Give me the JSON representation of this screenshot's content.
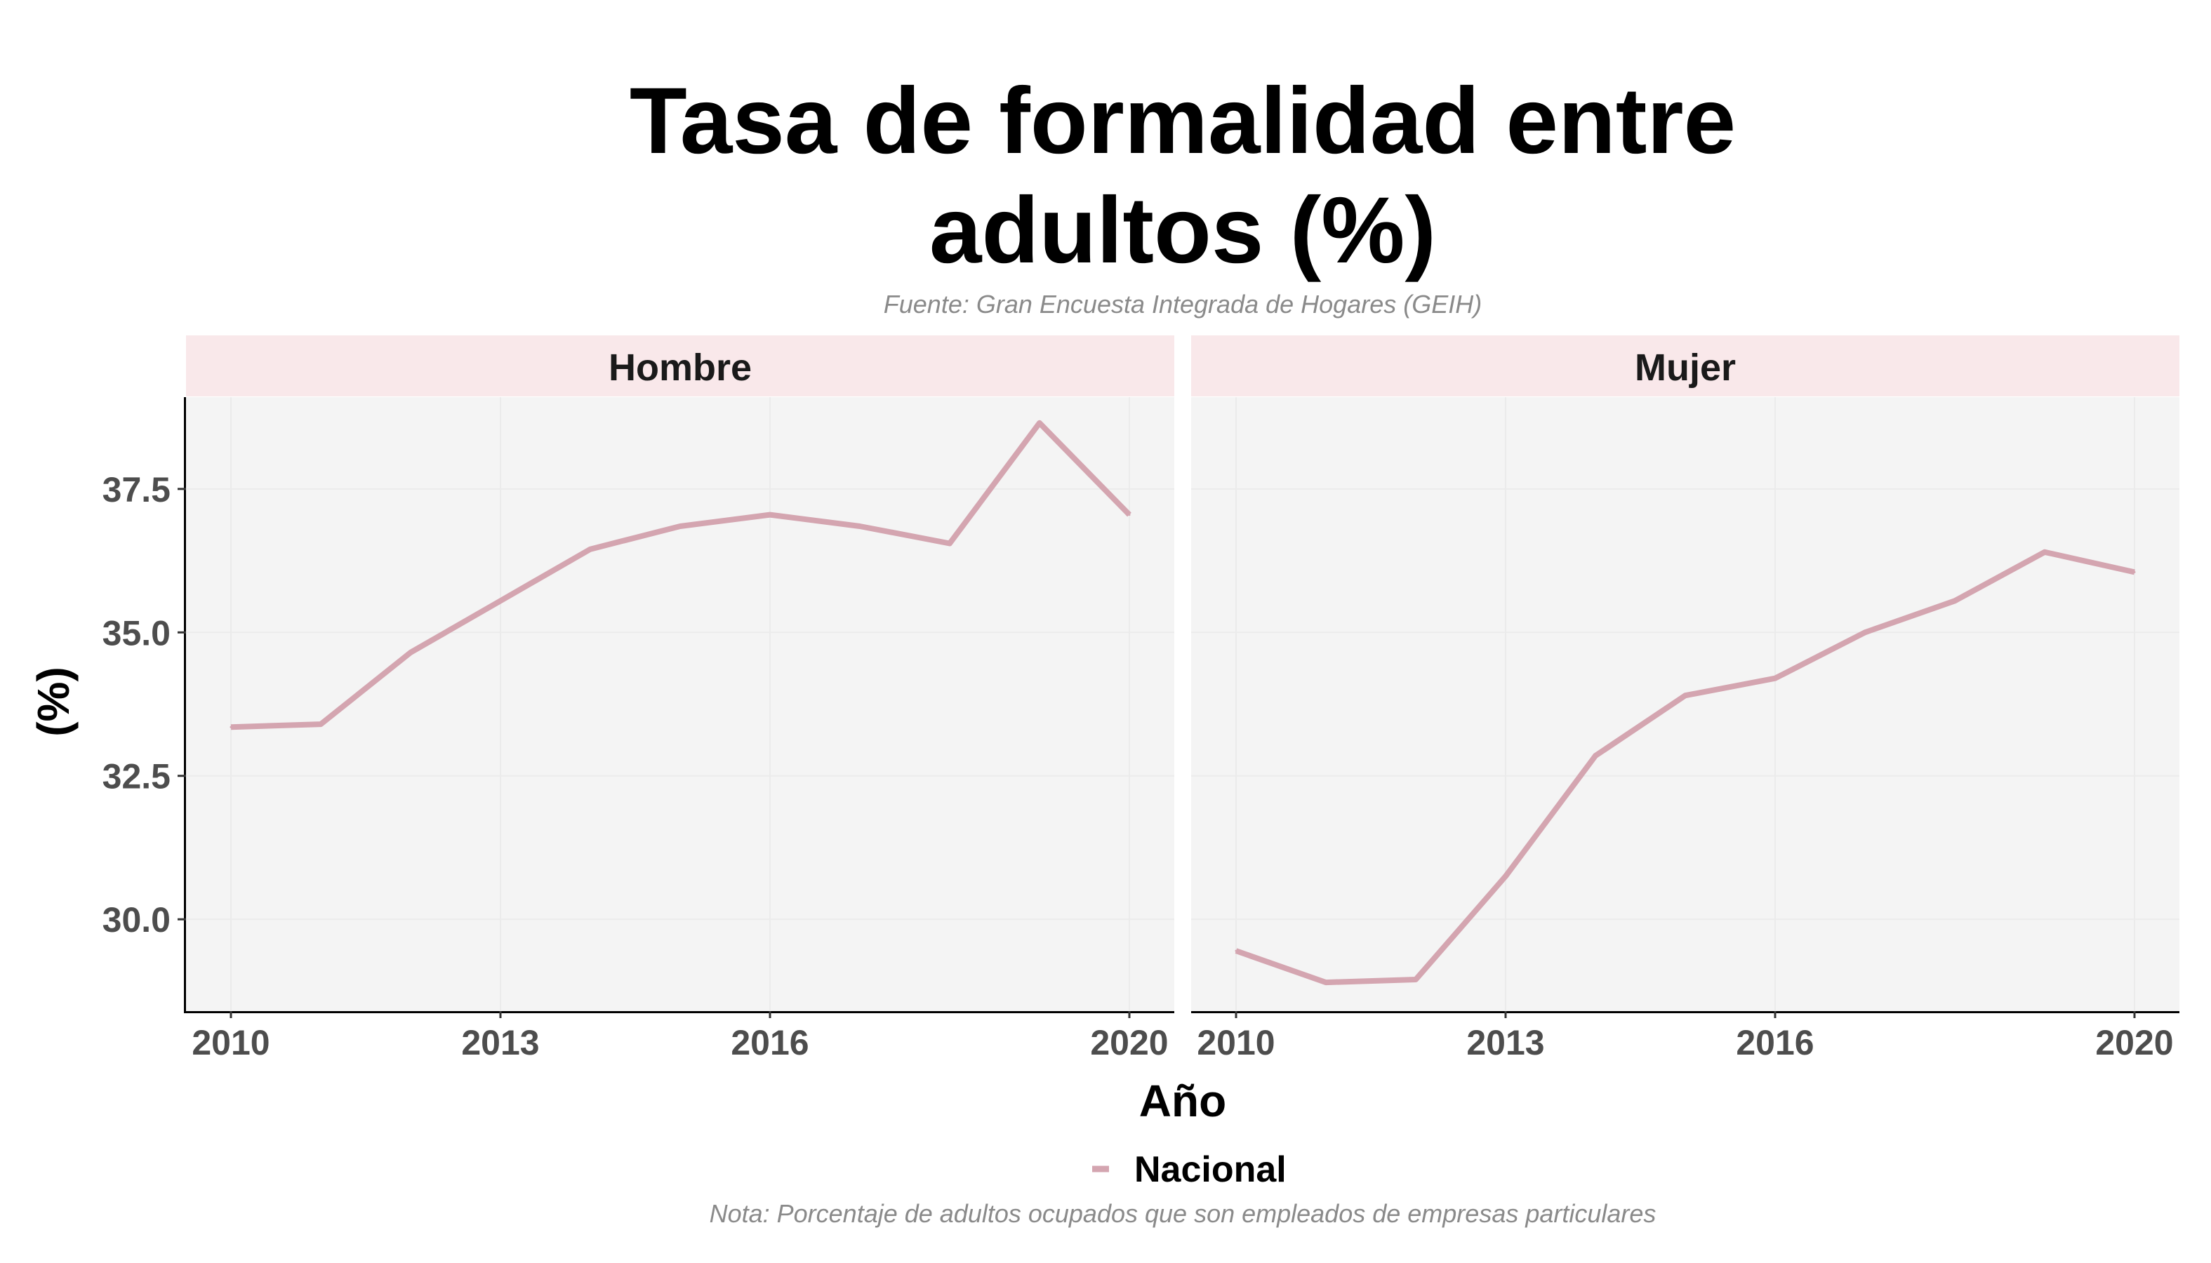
{
  "chart_data": {
    "type": "line",
    "title_lines": [
      "Tasa de formalidad entre",
      "adultos (%)"
    ],
    "subtitle": "Fuente: Gran Encuesta Integrada de Hogares (GEIH)",
    "caption": "Nota: Porcentaje de adultos ocupados que son empleados de empresas particulares",
    "xlabel": "Año",
    "ylabel": "(%)",
    "x": [
      2010,
      2011,
      2012,
      2013,
      2014,
      2015,
      2016,
      2017,
      2018,
      2019,
      2020
    ],
    "x_ticks": [
      2010,
      2013,
      2016,
      2020
    ],
    "y_ticks": [
      30.0,
      32.5,
      35.0,
      37.5
    ],
    "y_tick_labels": [
      "30.0",
      "32.5",
      "35.0",
      "37.5"
    ],
    "ylim": [
      28.4,
      39.1
    ],
    "xlim": [
      2009.5,
      2020.5
    ],
    "grid": true,
    "legend_position": "bottom",
    "line_color": "#d4a5b0",
    "panel_background": "#f4f4f4",
    "strip_background": "#f9e8ea",
    "facets": [
      {
        "label": "Hombre",
        "series": [
          {
            "name": "Nacional",
            "values": [
              33.35,
              33.4,
              34.65,
              35.55,
              36.45,
              36.85,
              37.05,
              36.85,
              36.55,
              38.65,
              37.05
            ]
          }
        ]
      },
      {
        "label": "Mujer",
        "series": [
          {
            "name": "Nacional",
            "values": [
              29.45,
              28.9,
              28.95,
              30.75,
              32.85,
              33.9,
              34.2,
              35.0,
              35.55,
              36.4,
              36.05
            ]
          }
        ]
      }
    ]
  }
}
